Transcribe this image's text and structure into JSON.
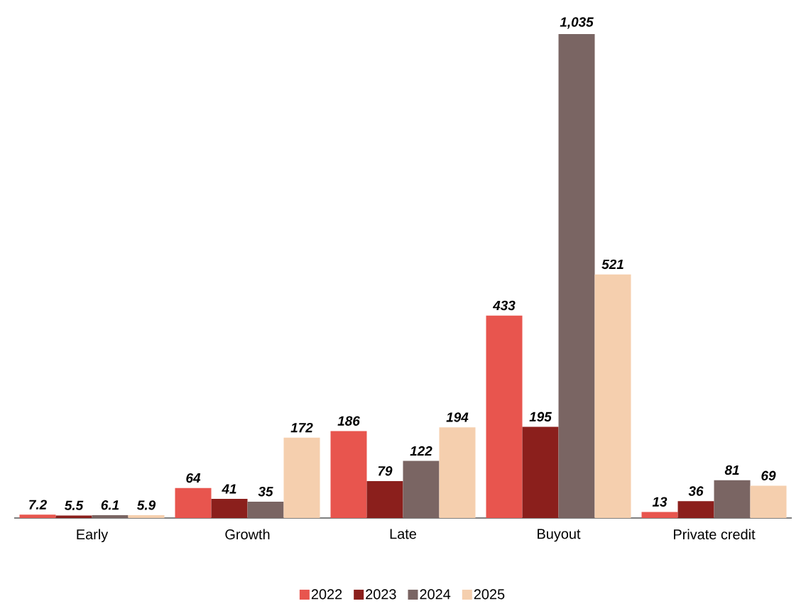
{
  "chart_data": {
    "type": "bar",
    "categories": [
      "Early",
      "Growth",
      "Late",
      "Buyout",
      "Private credit"
    ],
    "series": [
      {
        "name": "2022",
        "color": "#e8554e",
        "values": [
          7.2,
          64,
          186,
          433,
          13
        ],
        "value_labels": [
          "7.2",
          "64",
          "186",
          "433",
          "13"
        ]
      },
      {
        "name": "2023",
        "color": "#8b1f1c",
        "values": [
          5.5,
          41,
          79,
          195,
          36
        ],
        "value_labels": [
          "5.5",
          "41",
          "79",
          "195",
          "36"
        ]
      },
      {
        "name": "2024",
        "color": "#7a6563",
        "values": [
          6.1,
          35,
          122,
          1035,
          81
        ],
        "value_labels": [
          "6.1",
          "35",
          "122",
          "1,035",
          "81"
        ]
      },
      {
        "name": "2025",
        "color": "#f5cfae",
        "values": [
          5.9,
          172,
          194,
          521,
          69
        ],
        "value_labels": [
          "5.9",
          "172",
          "194",
          "521",
          "69"
        ]
      }
    ],
    "legend": "bottom"
  }
}
